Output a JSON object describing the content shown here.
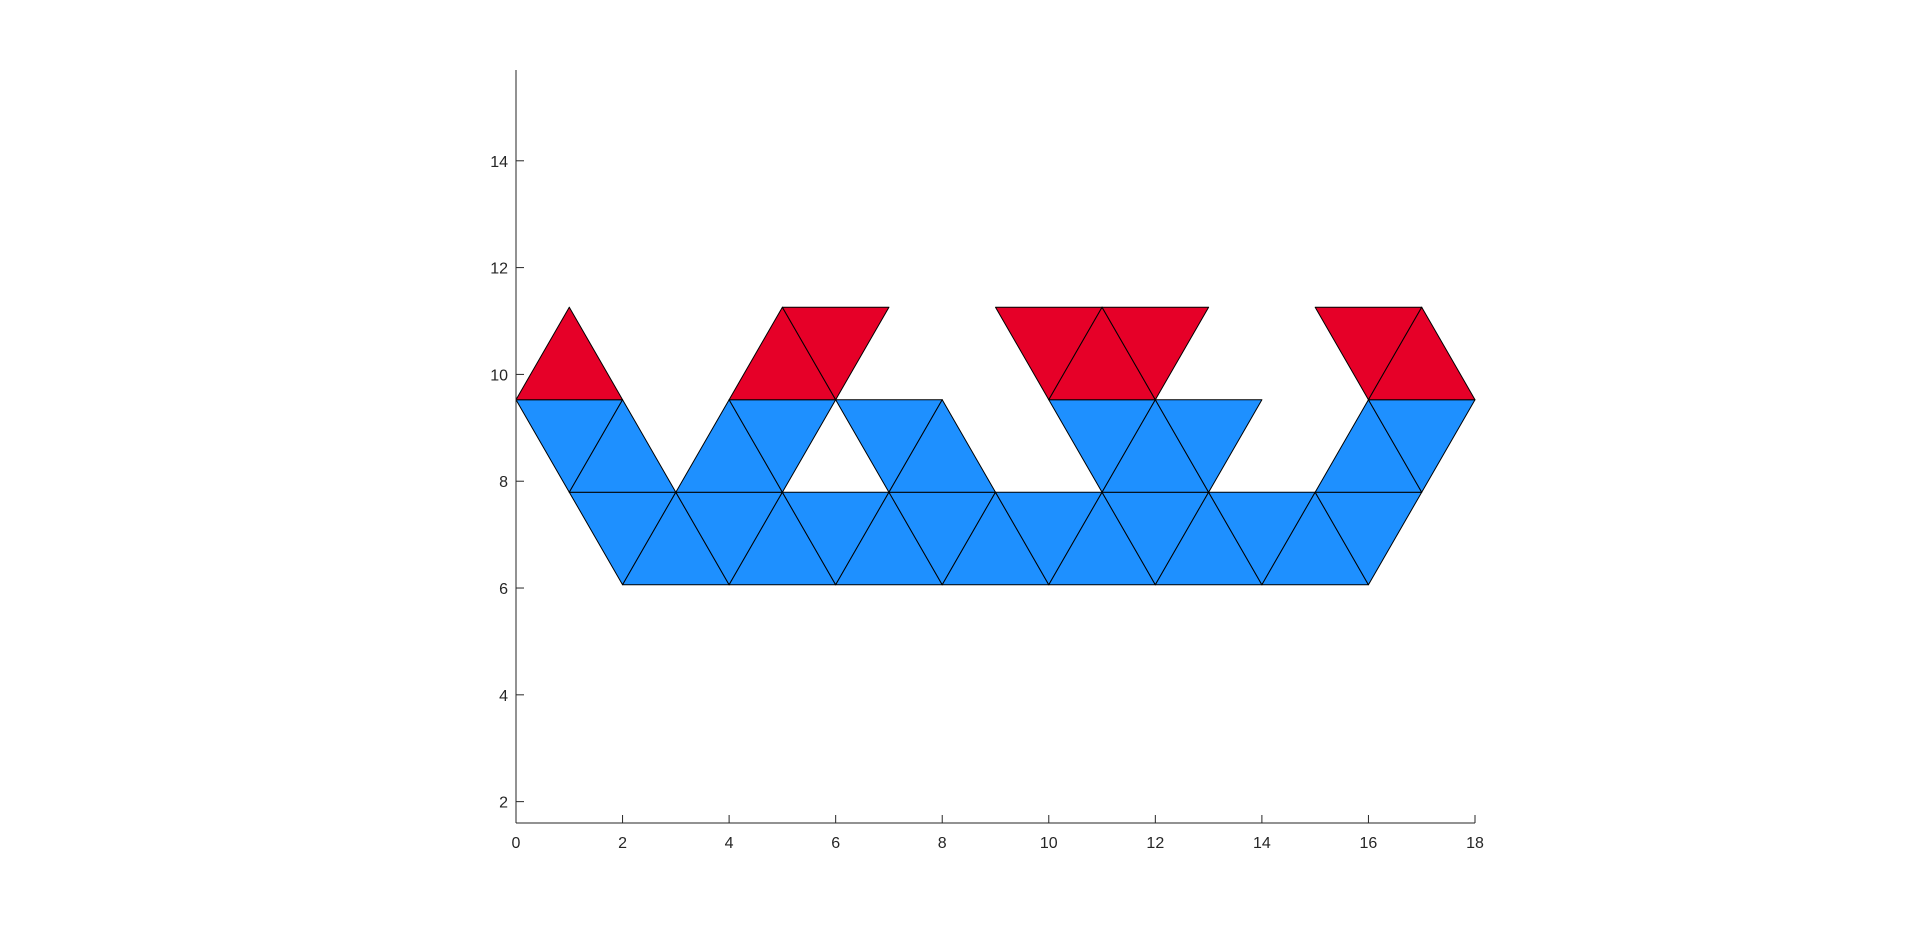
{
  "chart_data": {
    "type": "patch",
    "title": "",
    "xlabel": "",
    "ylabel": "",
    "xlim": [
      0,
      18
    ],
    "ylim": [
      1.6,
      15.7
    ],
    "x_ticks": [
      "0",
      "2",
      "4",
      "6",
      "8",
      "10",
      "12",
      "14",
      "16",
      "18"
    ],
    "y_ticks": [
      "2",
      "4",
      "6",
      "8",
      "10",
      "12",
      "14"
    ],
    "grid": false,
    "colors": {
      "blue": "#1e90ff",
      "red": "#e60028",
      "edge": "#000000"
    },
    "triangles": [
      {
        "color": "blue",
        "vertices": [
          [
            2,
            6.0622
          ],
          [
            3,
            7.7942
          ],
          [
            1,
            7.7942
          ]
        ]
      },
      {
        "color": "blue",
        "vertices": [
          [
            2,
            6.0622
          ],
          [
            4,
            6.0622
          ],
          [
            3,
            7.7942
          ]
        ]
      },
      {
        "color": "blue",
        "vertices": [
          [
            4,
            6.0622
          ],
          [
            5,
            7.7942
          ],
          [
            3,
            7.7942
          ]
        ]
      },
      {
        "color": "blue",
        "vertices": [
          [
            4,
            6.0622
          ],
          [
            6,
            6.0622
          ],
          [
            5,
            7.7942
          ]
        ]
      },
      {
        "color": "blue",
        "vertices": [
          [
            6,
            6.0622
          ],
          [
            7,
            7.7942
          ],
          [
            5,
            7.7942
          ]
        ]
      },
      {
        "color": "blue",
        "vertices": [
          [
            6,
            6.0622
          ],
          [
            8,
            6.0622
          ],
          [
            7,
            7.7942
          ]
        ]
      },
      {
        "color": "blue",
        "vertices": [
          [
            8,
            6.0622
          ],
          [
            9,
            7.7942
          ],
          [
            7,
            7.7942
          ]
        ]
      },
      {
        "color": "blue",
        "vertices": [
          [
            8,
            6.0622
          ],
          [
            10,
            6.0622
          ],
          [
            9,
            7.7942
          ]
        ]
      },
      {
        "color": "blue",
        "vertices": [
          [
            10,
            6.0622
          ],
          [
            11,
            7.7942
          ],
          [
            9,
            7.7942
          ]
        ]
      },
      {
        "color": "blue",
        "vertices": [
          [
            10,
            6.0622
          ],
          [
            12,
            6.0622
          ],
          [
            11,
            7.7942
          ]
        ]
      },
      {
        "color": "blue",
        "vertices": [
          [
            12,
            6.0622
          ],
          [
            13,
            7.7942
          ],
          [
            11,
            7.7942
          ]
        ]
      },
      {
        "color": "blue",
        "vertices": [
          [
            12,
            6.0622
          ],
          [
            14,
            6.0622
          ],
          [
            13,
            7.7942
          ]
        ]
      },
      {
        "color": "blue",
        "vertices": [
          [
            14,
            6.0622
          ],
          [
            15,
            7.7942
          ],
          [
            13,
            7.7942
          ]
        ]
      },
      {
        "color": "blue",
        "vertices": [
          [
            14,
            6.0622
          ],
          [
            16,
            6.0622
          ],
          [
            15,
            7.7942
          ]
        ]
      },
      {
        "color": "blue",
        "vertices": [
          [
            16,
            6.0622
          ],
          [
            17,
            7.7942
          ],
          [
            15,
            7.7942
          ]
        ]
      },
      {
        "color": "blue",
        "vertices": [
          [
            1,
            7.7942
          ],
          [
            2,
            9.5263
          ],
          [
            0,
            9.5263
          ]
        ]
      },
      {
        "color": "blue",
        "vertices": [
          [
            1,
            7.7942
          ],
          [
            3,
            7.7942
          ],
          [
            2,
            9.5263
          ]
        ]
      },
      {
        "color": "blue",
        "vertices": [
          [
            3,
            7.7942
          ],
          [
            5,
            7.7942
          ],
          [
            4,
            9.5263
          ]
        ]
      },
      {
        "color": "blue",
        "vertices": [
          [
            5,
            7.7942
          ],
          [
            6,
            9.5263
          ],
          [
            4,
            9.5263
          ]
        ]
      },
      {
        "color": "blue",
        "vertices": [
          [
            7,
            7.7942
          ],
          [
            8,
            9.5263
          ],
          [
            6,
            9.5263
          ]
        ]
      },
      {
        "color": "blue",
        "vertices": [
          [
            7,
            7.7942
          ],
          [
            9,
            7.7942
          ],
          [
            8,
            9.5263
          ]
        ]
      },
      {
        "color": "blue",
        "vertices": [
          [
            11,
            7.7942
          ],
          [
            12,
            9.5263
          ],
          [
            10,
            9.5263
          ]
        ]
      },
      {
        "color": "blue",
        "vertices": [
          [
            11,
            7.7942
          ],
          [
            13,
            7.7942
          ],
          [
            12,
            9.5263
          ]
        ]
      },
      {
        "color": "blue",
        "vertices": [
          [
            13,
            7.7942
          ],
          [
            14,
            9.5263
          ],
          [
            12,
            9.5263
          ]
        ]
      },
      {
        "color": "blue",
        "vertices": [
          [
            15,
            7.7942
          ],
          [
            17,
            7.7942
          ],
          [
            16,
            9.5263
          ]
        ]
      },
      {
        "color": "blue",
        "vertices": [
          [
            17,
            7.7942
          ],
          [
            18,
            9.5263
          ],
          [
            16,
            9.5263
          ]
        ]
      },
      {
        "color": "red",
        "vertices": [
          [
            0,
            9.5263
          ],
          [
            2,
            9.5263
          ],
          [
            1,
            11.2583
          ]
        ]
      },
      {
        "color": "red",
        "vertices": [
          [
            4,
            9.5263
          ],
          [
            6,
            9.5263
          ],
          [
            5,
            11.2583
          ]
        ]
      },
      {
        "color": "red",
        "vertices": [
          [
            6,
            9.5263
          ],
          [
            7,
            11.2583
          ],
          [
            5,
            11.2583
          ]
        ]
      },
      {
        "color": "red",
        "vertices": [
          [
            10,
            9.5263
          ],
          [
            11,
            11.2583
          ],
          [
            9,
            11.2583
          ]
        ]
      },
      {
        "color": "red",
        "vertices": [
          [
            10,
            9.5263
          ],
          [
            12,
            9.5263
          ],
          [
            11,
            11.2583
          ]
        ]
      },
      {
        "color": "red",
        "vertices": [
          [
            12,
            9.5263
          ],
          [
            13,
            11.2583
          ],
          [
            11,
            11.2583
          ]
        ]
      },
      {
        "color": "red",
        "vertices": [
          [
            16,
            9.5263
          ],
          [
            17,
            11.2583
          ],
          [
            15,
            11.2583
          ]
        ]
      },
      {
        "color": "red",
        "vertices": [
          [
            16,
            9.5263
          ],
          [
            18,
            9.5263
          ],
          [
            17,
            11.2583
          ]
        ]
      }
    ]
  }
}
